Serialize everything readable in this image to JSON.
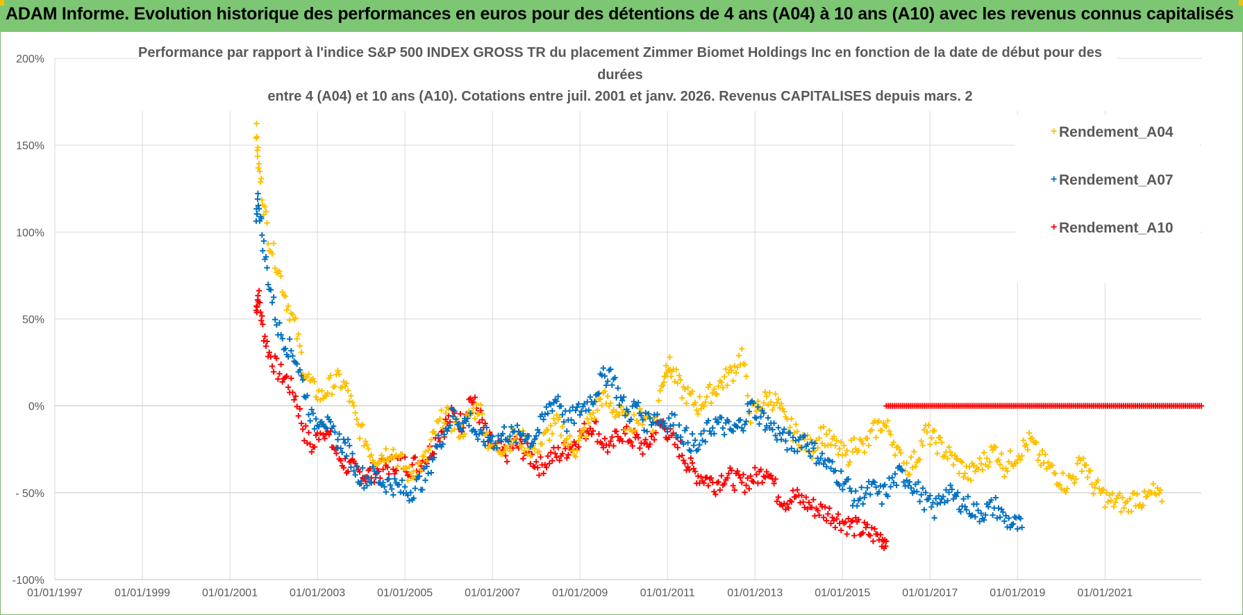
{
  "header": {
    "title": "ADAM Informe. Evolution historique des performances en euros pour des détentions de 4 ans (A04) à 10 ans (A10) avec les revenus connus capitalisés"
  },
  "chart_data": {
    "type": "scatter",
    "title_lines": [
      "Performance par rapport à l'indice S&P 500 INDEX GROSS TR  du placement Zimmer Biomet Holdings Inc en fonction de la date de début pour des",
      "durées",
      "entre 4 (A04) et 10 ans (A10).  Cotations entre juil. 2001 et janv. 2026. Revenus CAPITALISES  depuis mars. 2"
    ],
    "xlabel": "",
    "ylabel": "",
    "x_ticks": [
      "01/01/1997",
      "01/01/1999",
      "01/01/2001",
      "01/01/2003",
      "01/01/2005",
      "01/01/2007",
      "01/01/2009",
      "01/01/2011",
      "01/01/2013",
      "01/01/2015",
      "01/01/2017",
      "01/01/2019",
      "01/01/2021"
    ],
    "xlim": [
      1997.0,
      2023.2
    ],
    "y_ticks": [
      "200%",
      "150%",
      "100%",
      "50%",
      "0%",
      "- 50%",
      "-100%"
    ],
    "ylim": [
      -100,
      200
    ],
    "grid": true,
    "legend_position": "top-right",
    "series": [
      {
        "name": "Rendement_A04",
        "color": "#ffc000",
        "x": [
          2001.6,
          2001.65,
          2001.75,
          2001.9,
          2002.1,
          2002.3,
          2002.5,
          2002.7,
          2002.9,
          2003.1,
          2003.3,
          2003.5,
          2003.7,
          2003.9,
          2004.1,
          2004.3,
          2004.5,
          2004.7,
          2004.9,
          2005.1,
          2005.3,
          2005.5,
          2005.7,
          2005.9,
          2006.1,
          2006.3,
          2006.5,
          2006.7,
          2006.9,
          2007.1,
          2007.3,
          2007.5,
          2007.7,
          2007.9,
          2008.1,
          2008.3,
          2008.5,
          2008.7,
          2008.9,
          2009.1,
          2009.3,
          2009.5,
          2009.7,
          2009.9,
          2010.1,
          2010.3,
          2010.5,
          2010.7,
          2010.9,
          2011.0,
          2011.1,
          2011.3,
          2011.5,
          2011.7,
          2011.9,
          2012.1,
          2012.3,
          2012.5,
          2012.7,
          2012.9,
          2013.1,
          2013.3,
          2013.5,
          2013.7,
          2013.9,
          2014.1,
          2014.3,
          2014.5,
          2014.7,
          2014.9,
          2015.1,
          2015.3,
          2015.5,
          2015.7,
          2015.9,
          2016.1,
          2016.3,
          2016.5,
          2016.7,
          2016.9,
          2017.1,
          2017.3,
          2017.5,
          2017.7,
          2017.9,
          2018.1,
          2018.3,
          2018.5,
          2018.7,
          2018.9,
          2019.1,
          2019.3,
          2019.5,
          2019.7,
          2019.9,
          2020.1,
          2020.3,
          2020.5,
          2020.7,
          2020.9,
          2021.1,
          2021.3,
          2021.5,
          2021.7,
          2021.9,
          2022.1,
          2022.3
        ],
        "y": [
          160,
          140,
          120,
          95,
          80,
          60,
          45,
          20,
          10,
          5,
          12,
          15,
          8,
          -10,
          -20,
          -30,
          -28,
          -25,
          -32,
          -40,
          -35,
          -30,
          -15,
          -5,
          -10,
          -15,
          -5,
          0,
          -20,
          -25,
          -22,
          -18,
          -20,
          -25,
          -22,
          -15,
          -10,
          -20,
          -25,
          -15,
          -5,
          5,
          0,
          -5,
          -10,
          -8,
          -5,
          -10,
          15,
          25,
          20,
          10,
          5,
          0,
          5,
          10,
          15,
          20,
          30,
          -5,
          0,
          5,
          2,
          -10,
          -15,
          -20,
          -25,
          -15,
          -20,
          -25,
          -30,
          -20,
          -25,
          -15,
          -10,
          -15,
          -30,
          -35,
          -30,
          -15,
          -20,
          -25,
          -30,
          -35,
          -40,
          -35,
          -30,
          -25,
          -35,
          -30,
          -25,
          -20,
          -30,
          -35,
          -40,
          -45,
          -40,
          -30,
          -45,
          -50,
          -55,
          -55,
          -58,
          -52,
          -55,
          -50,
          -55
        ],
        "spread": 3
      },
      {
        "name": "Rendement_A07",
        "color": "#0070c0",
        "x": [
          2001.6,
          2001.65,
          2001.75,
          2001.9,
          2002.1,
          2002.3,
          2002.5,
          2002.7,
          2002.9,
          2003.1,
          2003.3,
          2003.5,
          2003.7,
          2003.9,
          2004.1,
          2004.3,
          2004.5,
          2004.7,
          2004.9,
          2005.1,
          2005.3,
          2005.5,
          2005.7,
          2005.9,
          2006.1,
          2006.3,
          2006.5,
          2006.7,
          2006.9,
          2007.1,
          2007.3,
          2007.5,
          2007.7,
          2007.9,
          2008.1,
          2008.3,
          2008.5,
          2008.7,
          2008.9,
          2009.1,
          2009.3,
          2009.5,
          2009.7,
          2009.9,
          2010.1,
          2010.3,
          2010.5,
          2010.7,
          2010.9,
          2011.1,
          2011.3,
          2011.5,
          2011.7,
          2011.9,
          2012.1,
          2012.3,
          2012.5,
          2012.7,
          2012.9,
          2013.1,
          2013.3,
          2013.5,
          2013.7,
          2013.9,
          2014.1,
          2014.3,
          2014.5,
          2014.7,
          2014.9,
          2015.1,
          2015.3,
          2015.5,
          2015.7,
          2015.9,
          2016.1,
          2016.3,
          2016.5,
          2016.7,
          2016.9,
          2017.1,
          2017.3,
          2017.5,
          2017.7,
          2017.9,
          2018.1,
          2018.3,
          2018.5,
          2018.7,
          2018.9,
          2019.1
        ],
        "y": [
          110,
          120,
          95,
          70,
          45,
          35,
          28,
          10,
          -10,
          -5,
          -15,
          -20,
          -25,
          -38,
          -42,
          -40,
          -44,
          -45,
          -48,
          -50,
          -45,
          -40,
          -25,
          -15,
          -5,
          -10,
          -8,
          -20,
          -18,
          -20,
          -15,
          -18,
          -15,
          -20,
          -12,
          0,
          5,
          -10,
          -5,
          0,
          5,
          15,
          20,
          5,
          -5,
          0,
          -10,
          -5,
          -10,
          -8,
          -15,
          -20,
          -25,
          -15,
          -10,
          -12,
          -15,
          -10,
          0,
          -5,
          -10,
          -15,
          -20,
          -22,
          -18,
          -25,
          -30,
          -35,
          -40,
          -45,
          -55,
          -50,
          -48,
          -52,
          -45,
          -40,
          -42,
          -48,
          -55,
          -60,
          -50,
          -52,
          -55,
          -58,
          -62,
          -60,
          -58,
          -65,
          -68,
          -70
        ],
        "spread": 3
      },
      {
        "name": "Rendement_A10",
        "color": "#ff0000",
        "x": [
          2001.6,
          2001.65,
          2001.75,
          2001.9,
          2002.1,
          2002.3,
          2002.5,
          2002.7,
          2002.9,
          2003.1,
          2003.3,
          2003.5,
          2003.7,
          2003.9,
          2004.1,
          2004.3,
          2004.5,
          2004.7,
          2004.9,
          2005.1,
          2005.3,
          2005.5,
          2005.7,
          2005.9,
          2006.1,
          2006.3,
          2006.5,
          2006.7,
          2006.9,
          2007.1,
          2007.3,
          2007.5,
          2007.7,
          2007.9,
          2008.1,
          2008.3,
          2008.5,
          2008.7,
          2008.9,
          2009.1,
          2009.3,
          2009.5,
          2009.7,
          2009.9,
          2010.1,
          2010.3,
          2010.5,
          2010.7,
          2010.9,
          2011.1,
          2011.3,
          2011.5,
          2011.7,
          2011.9,
          2012.1,
          2012.3,
          2012.5,
          2012.7,
          2012.9,
          2013.1,
          2013.3,
          2013.5,
          2013.7,
          2013.9,
          2014.1,
          2014.3,
          2014.5,
          2014.7,
          2014.9,
          2015.1,
          2015.3,
          2015.5,
          2015.7,
          2015.9,
          2016.0
        ],
        "y": [
          55,
          65,
          45,
          30,
          20,
          15,
          5,
          -15,
          -25,
          -10,
          -20,
          -30,
          -35,
          -38,
          -40,
          -38,
          -36,
          -34,
          -32,
          -35,
          -33,
          -30,
          -20,
          -12,
          -5,
          -10,
          5,
          -5,
          -20,
          -25,
          -28,
          -22,
          -25,
          -30,
          -35,
          -30,
          -28,
          -25,
          -20,
          -15,
          -10,
          -20,
          -25,
          -15,
          -18,
          -20,
          -25,
          -15,
          -10,
          -20,
          -25,
          -35,
          -40,
          -42,
          -45,
          -40,
          -42,
          -45,
          -42,
          -40,
          -35,
          -50,
          -55,
          -52,
          -55,
          -58,
          -60,
          -62,
          -65,
          -68,
          -70,
          -72,
          -74,
          -76,
          -78
        ],
        "spread": 3,
        "flat_segment": {
          "x_start": 2016.0,
          "x_end": 2023.2,
          "y": 0
        }
      }
    ]
  }
}
